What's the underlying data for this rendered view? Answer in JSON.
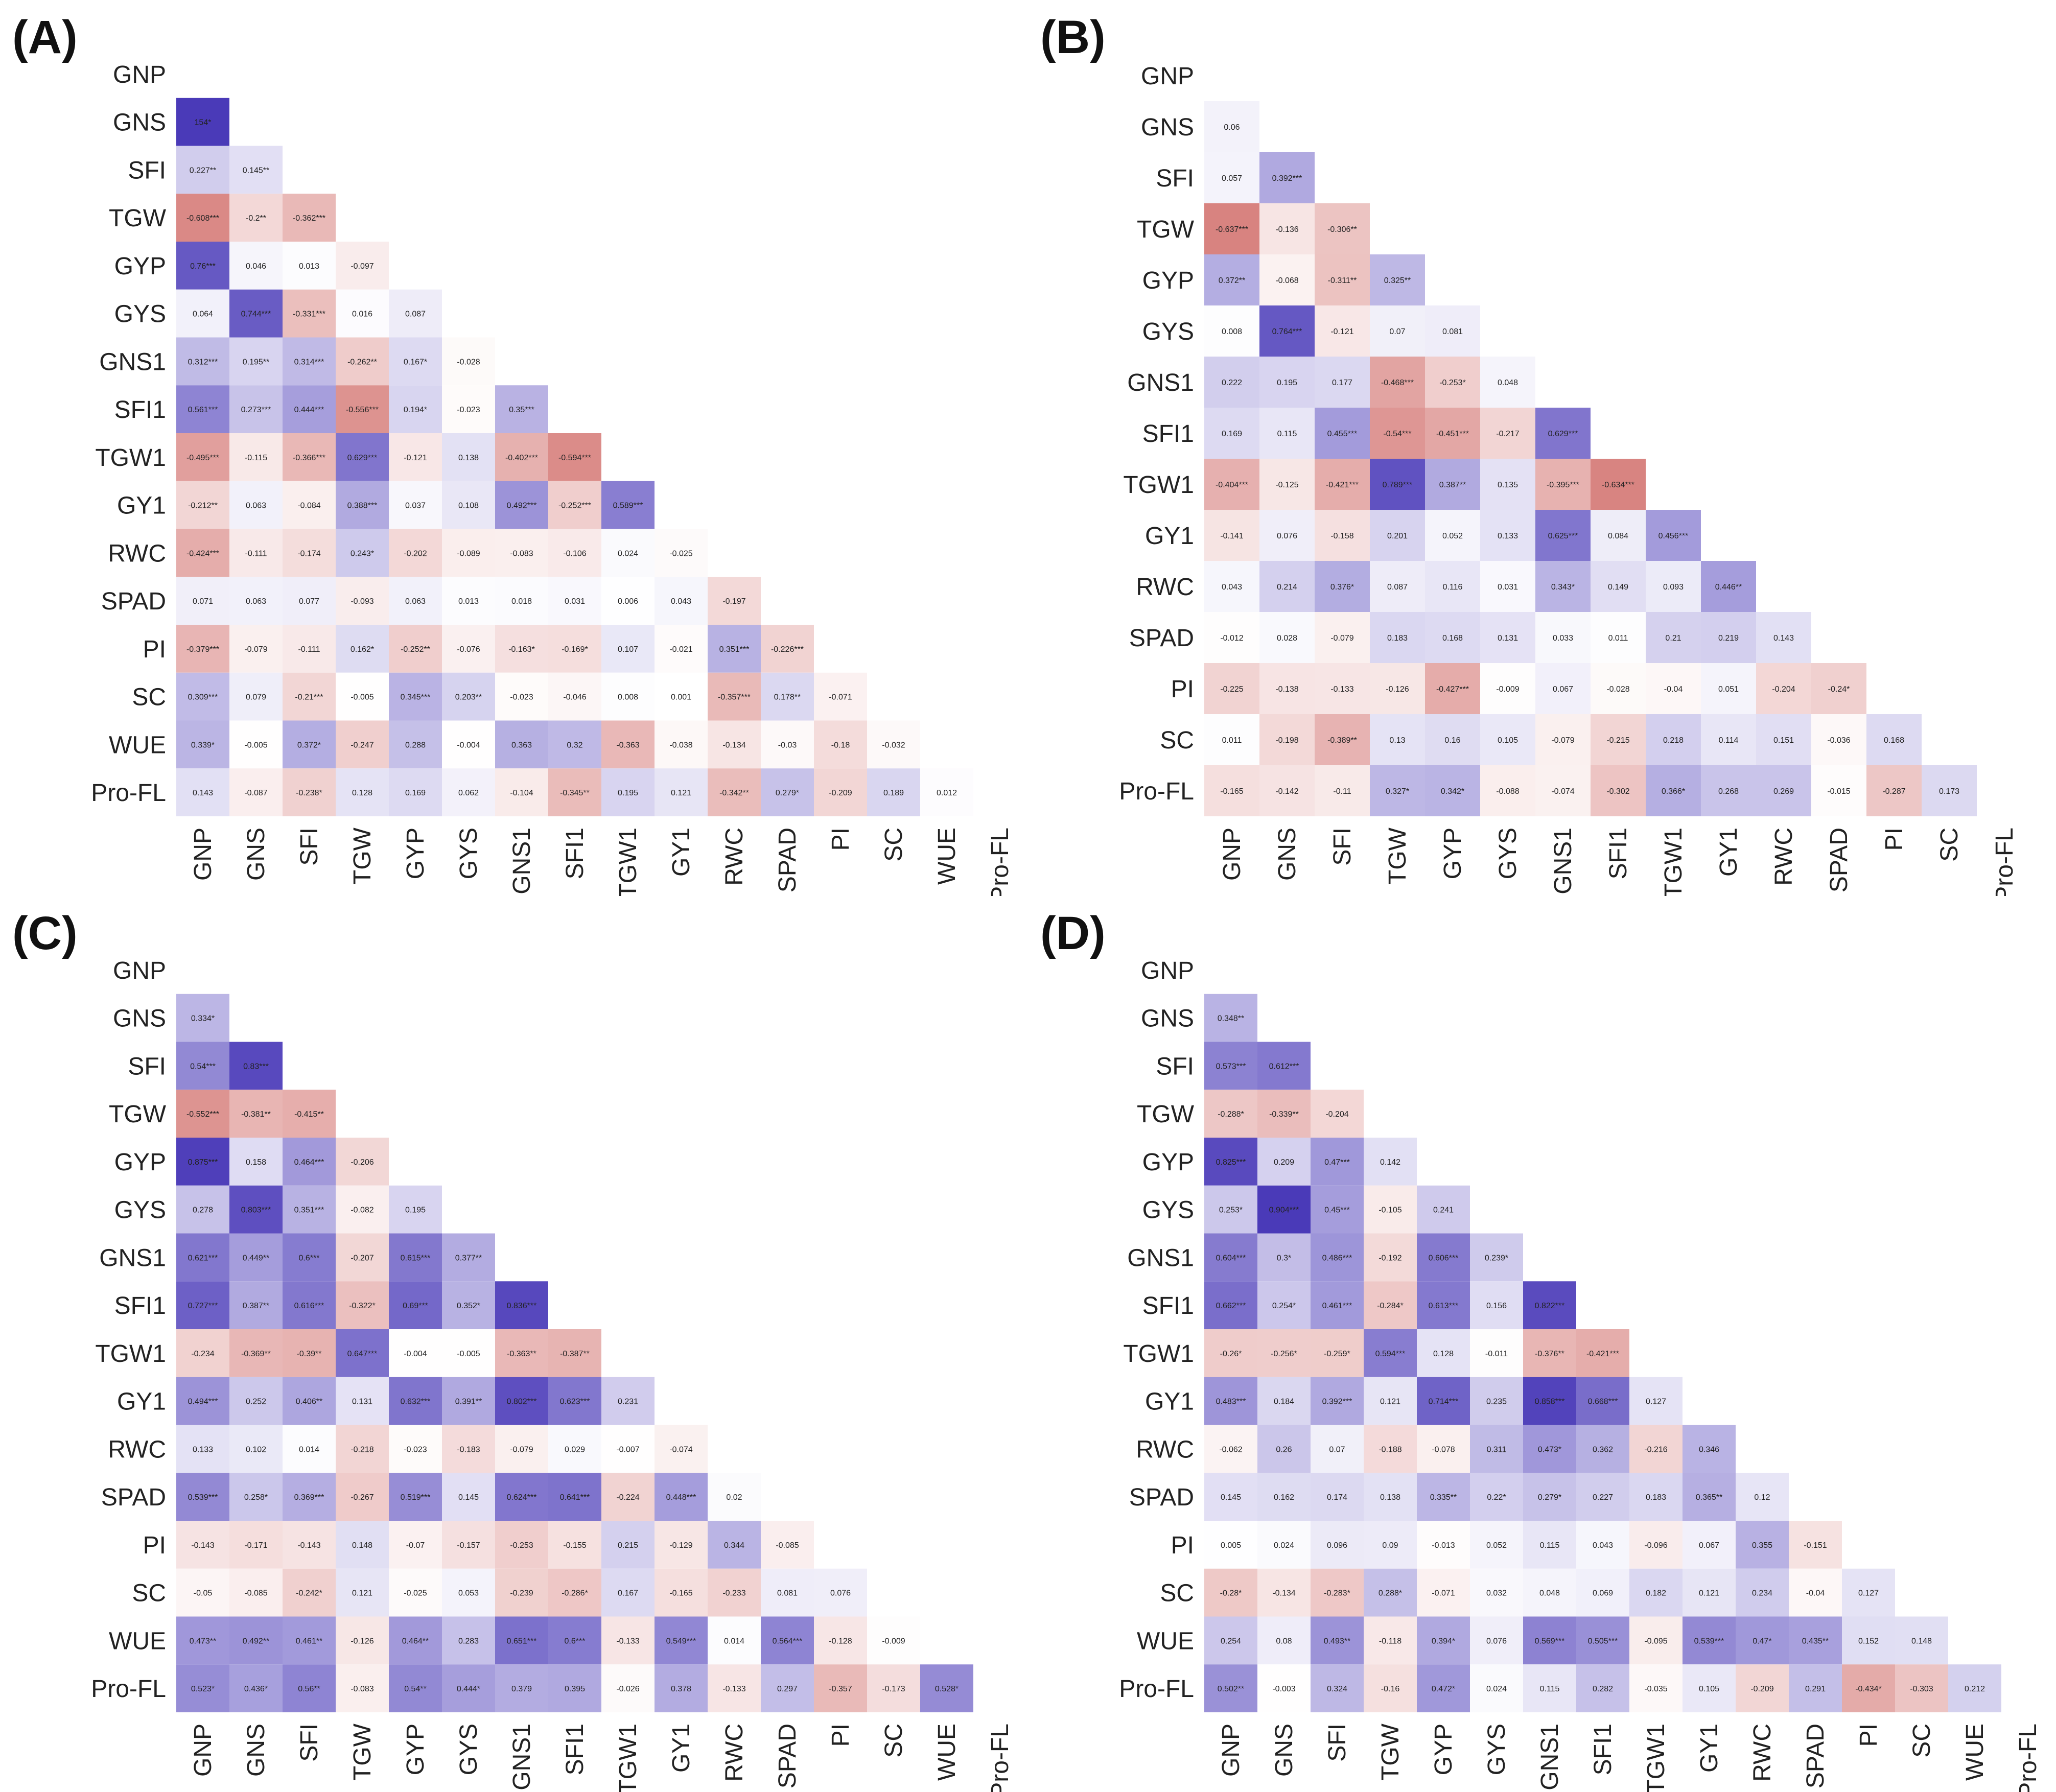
{
  "colors": {
    "positive": "#4a3ab8",
    "negative": "#c8504c",
    "neutral": "#ffffff"
  },
  "chart_data": [
    {
      "type": "heatmap",
      "panel_label": "(A)",
      "variables": [
        "GNP",
        "GNS",
        "SFI",
        "TGW",
        "GYP",
        "GYS",
        "GNS1",
        "SFI1",
        "TGW1",
        "GY1",
        "RWC",
        "SPAD",
        "PI",
        "SC",
        "WUE",
        "Pro-FL"
      ],
      "labels": [
        [
          "154*"
        ],
        [
          "0.227**",
          "0.145**"
        ],
        [
          "-0.608***",
          "-0.2**",
          "-0.362***"
        ],
        [
          "0.76***",
          "0.046",
          "0.013",
          "-0.097"
        ],
        [
          "0.064",
          "0.744***",
          "-0.331***",
          "0.016",
          "0.087"
        ],
        [
          "0.312***",
          "0.195**",
          "0.314***",
          "-0.262**",
          "0.167*",
          "-0.028"
        ],
        [
          "0.561***",
          "0.273***",
          "0.444***",
          "-0.556***",
          "0.194*",
          "-0.023",
          "0.35***"
        ],
        [
          "-0.495***",
          "-0.115",
          "-0.366***",
          "0.629***",
          "-0.121",
          "0.138",
          "-0.402***",
          "-0.594***"
        ],
        [
          "-0.212**",
          "0.063",
          "-0.084",
          "0.388***",
          "0.037",
          "0.108",
          "0.492***",
          "-0.252***",
          "0.589***"
        ],
        [
          "-0.424***",
          "-0.111",
          "-0.174",
          "0.243*",
          "-0.202",
          "-0.089",
          "-0.083",
          "-0.106",
          "0.024",
          "-0.025"
        ],
        [
          "0.071",
          "0.063",
          "0.077",
          "-0.093",
          "0.063",
          "0.013",
          "0.018",
          "0.031",
          "0.006",
          "0.043",
          "-0.197"
        ],
        [
          "-0.379***",
          "-0.079",
          "-0.111",
          "0.162*",
          "-0.252**",
          "-0.076",
          "-0.163*",
          "-0.169*",
          "0.107",
          "-0.021",
          "0.351***",
          "-0.226***"
        ],
        [
          "0.309***",
          "0.079",
          "-0.21***",
          "-0.005",
          "0.345***",
          "0.203**",
          "-0.023",
          "-0.046",
          "0.008",
          "0.001",
          "-0.357***",
          "0.178**",
          "-0.071"
        ],
        [
          "0.339*",
          "-0.005",
          "0.372*",
          "-0.247",
          "0.288",
          "-0.004",
          "0.363",
          "0.32",
          "-0.363",
          "-0.038",
          "-0.134",
          "-0.03",
          "-0.18",
          "-0.032"
        ],
        [
          "0.143",
          "-0.087",
          "-0.238*",
          "0.128",
          "0.169",
          "0.062",
          "-0.104",
          "-0.345**",
          "0.195",
          "0.121",
          "-0.342**",
          "0.279*",
          "-0.209",
          "0.189",
          "0.012"
        ]
      ]
    },
    {
      "type": "heatmap",
      "panel_label": "(B)",
      "variables": [
        "GNP",
        "GNS",
        "SFI",
        "TGW",
        "GYP",
        "GYS",
        "GNS1",
        "SFI1",
        "TGW1",
        "GY1",
        "RWC",
        "SPAD",
        "PI",
        "SC",
        "Pro-FL"
      ],
      "labels": [
        [
          "0.06"
        ],
        [
          "0.057",
          "0.392***"
        ],
        [
          "-0.637***",
          "-0.136",
          "-0.306**"
        ],
        [
          "0.372**",
          "-0.068",
          "-0.311**",
          "0.325**"
        ],
        [
          "0.008",
          "0.764***",
          "-0.121",
          "0.07",
          "0.081"
        ],
        [
          "0.222",
          "0.195",
          "0.177",
          "-0.468***",
          "-0.253*",
          "0.048"
        ],
        [
          "0.169",
          "0.115",
          "0.455***",
          "-0.54***",
          "-0.451***",
          "-0.217",
          "0.629***"
        ],
        [
          "-0.404***",
          "-0.125",
          "-0.421***",
          "0.789***",
          "0.387**",
          "0.135",
          "-0.395***",
          "-0.634***"
        ],
        [
          "-0.141",
          "0.076",
          "-0.158",
          "0.201",
          "0.052",
          "0.133",
          "0.625***",
          "0.084",
          "0.456***"
        ],
        [
          "0.043",
          "0.214",
          "0.376*",
          "0.087",
          "0.116",
          "0.031",
          "0.343*",
          "0.149",
          "0.093",
          "0.446**"
        ],
        [
          "-0.012",
          "0.028",
          "-0.079",
          "0.183",
          "0.168",
          "0.131",
          "0.033",
          "0.011",
          "0.21",
          "0.219",
          "0.143"
        ],
        [
          "-0.225",
          "-0.138",
          "-0.133",
          "-0.126",
          "-0.427***",
          "-0.009",
          "0.067",
          "-0.028",
          "-0.04",
          "0.051",
          "-0.204",
          "-0.24*"
        ],
        [
          "0.011",
          "-0.198",
          "-0.389**",
          "0.13",
          "0.16",
          "0.105",
          "-0.079",
          "-0.215",
          "0.218",
          "0.114",
          "0.151",
          "-0.036",
          "0.168"
        ],
        [
          "-0.165",
          "-0.142",
          "-0.11",
          "0.327*",
          "0.342*",
          "-0.088",
          "-0.074",
          "-0.302",
          "0.366*",
          "0.268",
          "0.269",
          "-0.015",
          "-0.287",
          "0.173"
        ]
      ]
    },
    {
      "type": "heatmap",
      "panel_label": "(C)",
      "variables": [
        "GNP",
        "GNS",
        "SFI",
        "TGW",
        "GYP",
        "GYS",
        "GNS1",
        "SFI1",
        "TGW1",
        "GY1",
        "RWC",
        "SPAD",
        "PI",
        "SC",
        "WUE",
        "Pro-FL"
      ],
      "labels": [
        [
          "0.334*"
        ],
        [
          "0.54***",
          "0.83***"
        ],
        [
          "-0.552***",
          "-0.381**",
          "-0.415**"
        ],
        [
          "0.875***",
          "0.158",
          "0.464***",
          "-0.206"
        ],
        [
          "0.278",
          "0.803***",
          "0.351***",
          "-0.082",
          "0.195"
        ],
        [
          "0.621***",
          "0.449**",
          "0.6***",
          "-0.207",
          "0.615***",
          "0.377**"
        ],
        [
          "0.727***",
          "0.387**",
          "0.616***",
          "-0.322*",
          "0.69***",
          "0.352*",
          "0.836***"
        ],
        [
          "-0.234",
          "-0.369**",
          "-0.39**",
          "0.647***",
          "-0.004",
          "-0.005",
          "-0.363**",
          "-0.387**"
        ],
        [
          "0.494***",
          "0.252",
          "0.406**",
          "0.131",
          "0.632***",
          "0.391**",
          "0.802***",
          "0.623***",
          "0.231"
        ],
        [
          "0.133",
          "0.102",
          "0.014",
          "-0.218",
          "-0.023",
          "-0.183",
          "-0.079",
          "0.029",
          "-0.007",
          "-0.074"
        ],
        [
          "0.539***",
          "0.258*",
          "0.369***",
          "-0.267",
          "0.519***",
          "0.145",
          "0.624***",
          "0.641***",
          "-0.224",
          "0.448***",
          "0.02"
        ],
        [
          "-0.143",
          "-0.171",
          "-0.143",
          "0.148",
          "-0.07",
          "-0.157",
          "-0.253",
          "-0.155",
          "0.215",
          "-0.129",
          "0.344",
          "-0.085"
        ],
        [
          "-0.05",
          "-0.085",
          "-0.242*",
          "0.121",
          "-0.025",
          "0.053",
          "-0.239",
          "-0.286*",
          "0.167",
          "-0.165",
          "-0.233",
          "0.081",
          "0.076"
        ],
        [
          "0.473**",
          "0.492**",
          "0.461**",
          "-0.126",
          "0.464**",
          "0.283",
          "0.651***",
          "0.6***",
          "-0.133",
          "0.549***",
          "0.014",
          "0.564***",
          "-0.128",
          "-0.009"
        ],
        [
          "0.523*",
          "0.436*",
          "0.56**",
          "-0.083",
          "0.54**",
          "0.444*",
          "0.379",
          "0.395",
          "-0.026",
          "0.378",
          "-0.133",
          "0.297",
          "-0.357",
          "-0.173",
          "0.528*"
        ]
      ]
    },
    {
      "type": "heatmap",
      "panel_label": "(D)",
      "variables": [
        "GNP",
        "GNS",
        "SFI",
        "TGW",
        "GYP",
        "GYS",
        "GNS1",
        "SFI1",
        "TGW1",
        "GY1",
        "RWC",
        "SPAD",
        "PI",
        "SC",
        "WUE",
        "Pro-FL"
      ],
      "labels": [
        [
          "0.348**"
        ],
        [
          "0.573***",
          "0.612***"
        ],
        [
          "-0.288*",
          "-0.339**",
          "-0.204"
        ],
        [
          "0.825***",
          "0.209",
          "0.47***",
          "0.142"
        ],
        [
          "0.253*",
          "0.904***",
          "0.45***",
          "-0.105",
          "0.241"
        ],
        [
          "0.604***",
          "0.3*",
          "0.486***",
          "-0.192",
          "0.606***",
          "0.239*"
        ],
        [
          "0.662***",
          "0.254*",
          "0.461***",
          "-0.284*",
          "0.613***",
          "0.156",
          "0.822***"
        ],
        [
          "-0.26*",
          "-0.256*",
          "-0.259*",
          "0.594***",
          "0.128",
          "-0.011",
          "-0.376**",
          "-0.421***"
        ],
        [
          "0.483***",
          "0.184",
          "0.392***",
          "0.121",
          "0.714***",
          "0.235",
          "0.858***",
          "0.668***",
          "0.127"
        ],
        [
          "-0.062",
          "0.26",
          "0.07",
          "-0.188",
          "-0.078",
          "0.311",
          "0.473*",
          "0.362",
          "-0.216",
          "0.346"
        ],
        [
          "0.145",
          "0.162",
          "0.174",
          "0.138",
          "0.335**",
          "0.22*",
          "0.279*",
          "0.227",
          "0.183",
          "0.365**",
          "0.12"
        ],
        [
          "0.005",
          "0.024",
          "0.096",
          "0.09",
          "-0.013",
          "0.052",
          "0.115",
          "0.043",
          "-0.096",
          "0.067",
          "0.355",
          "-0.151"
        ],
        [
          "-0.28*",
          "-0.134",
          "-0.283*",
          "0.288*",
          "-0.071",
          "0.032",
          "0.048",
          "0.069",
          "0.182",
          "0.121",
          "0.234",
          "-0.04",
          "0.127"
        ],
        [
          "0.254",
          "0.08",
          "0.493**",
          "-0.118",
          "0.394*",
          "0.076",
          "0.569***",
          "0.505***",
          "-0.095",
          "0.539***",
          "0.47*",
          "0.435**",
          "0.152",
          "0.148"
        ],
        [
          "0.502**",
          "-0.003",
          "0.324",
          "-0.16",
          "0.472*",
          "0.024",
          "0.115",
          "0.282",
          "-0.035",
          "0.105",
          "-0.209",
          "0.291",
          "-0.434*",
          "-0.303",
          "0.212"
        ]
      ]
    }
  ]
}
